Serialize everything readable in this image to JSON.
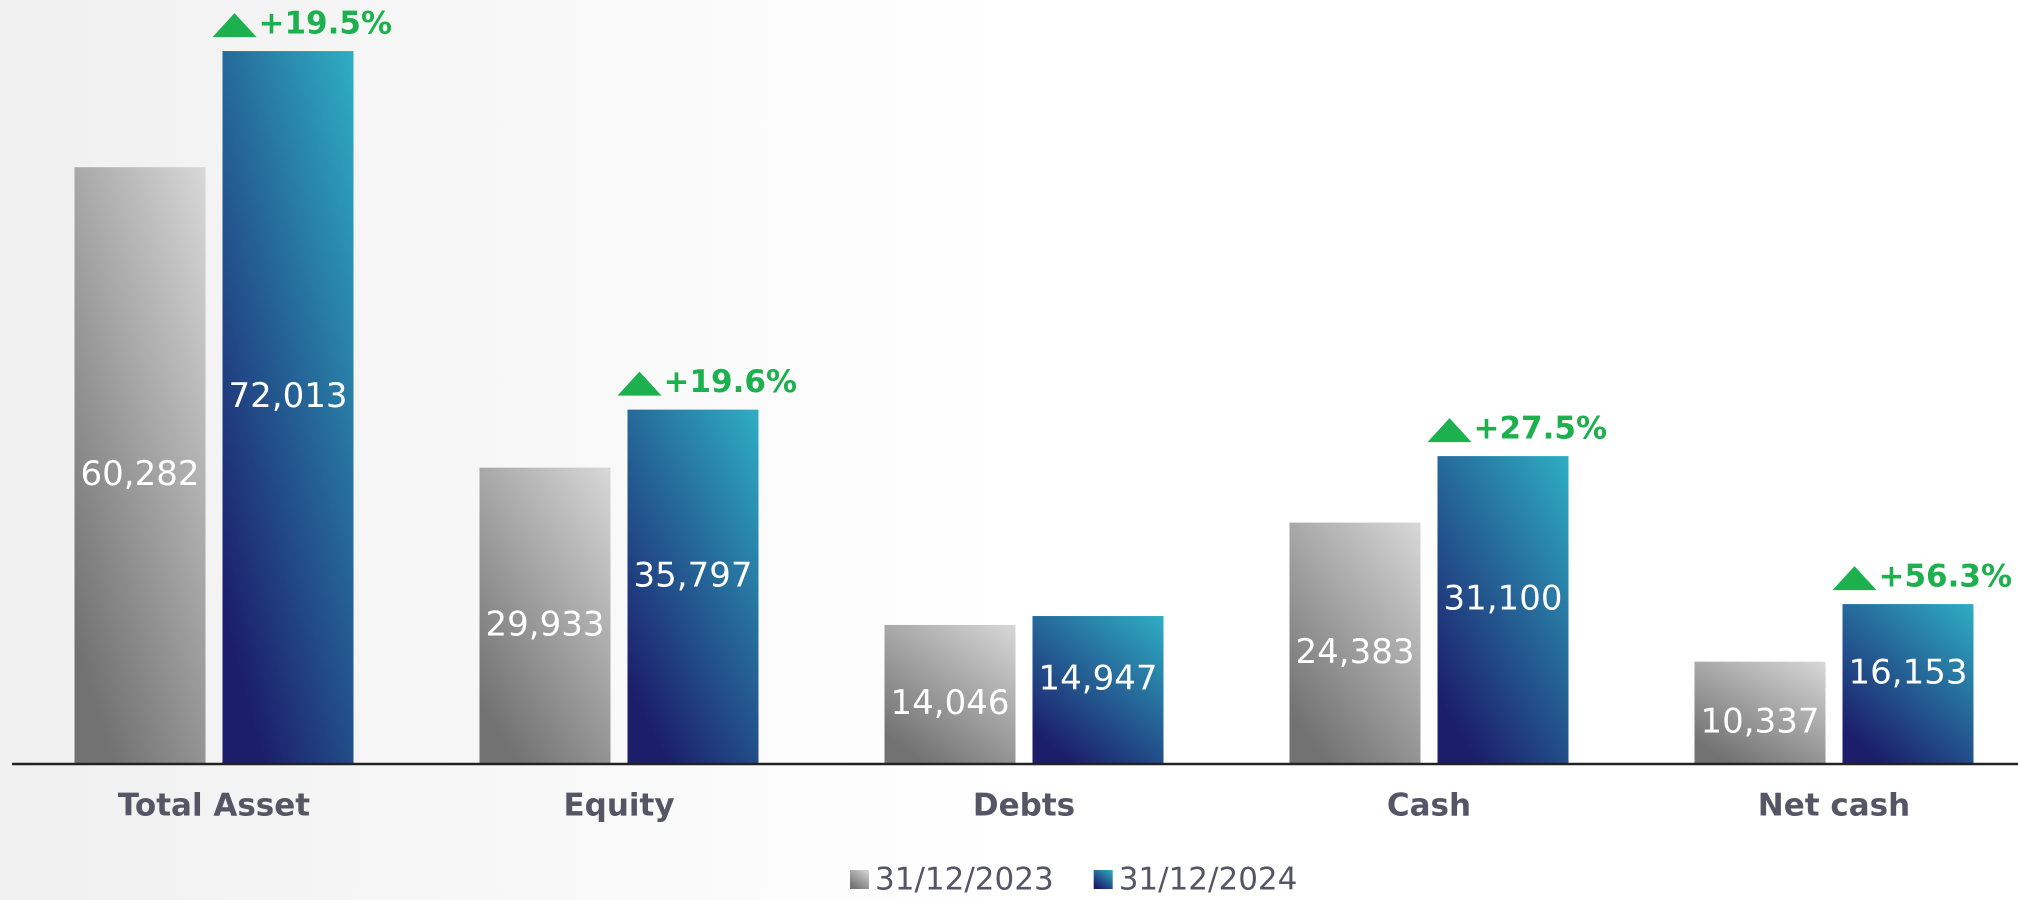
{
  "chart_data": {
    "type": "bar",
    "categories": [
      "Total Asset",
      "Equity",
      "Debts",
      "Cash",
      "Net cash"
    ],
    "series": [
      {
        "name": "31/12/2023",
        "color": "#8a8a8a",
        "gradient": [
          "#d8d8d8",
          "#727272"
        ],
        "values": [
          60282,
          29933,
          14046,
          24383,
          10337
        ],
        "value_labels": [
          "60,282",
          "29,933",
          "14,046",
          "24,383",
          "10,337"
        ]
      },
      {
        "name": "31/12/2024",
        "color": "#0d3f94",
        "gradient": [
          "#2eaec4",
          "#1c1d6b"
        ],
        "values": [
          72013,
          35797,
          14947,
          31100,
          16153
        ],
        "value_labels": [
          "72,013",
          "35,797",
          "14,947",
          "31,100",
          "16,153"
        ]
      }
    ],
    "annotations": [
      "+19.5%",
      "+19.6%",
      null,
      "+27.5%",
      "+56.3%"
    ],
    "annotation_color": "#1db04e",
    "ylim": [
      0,
      80000
    ]
  }
}
